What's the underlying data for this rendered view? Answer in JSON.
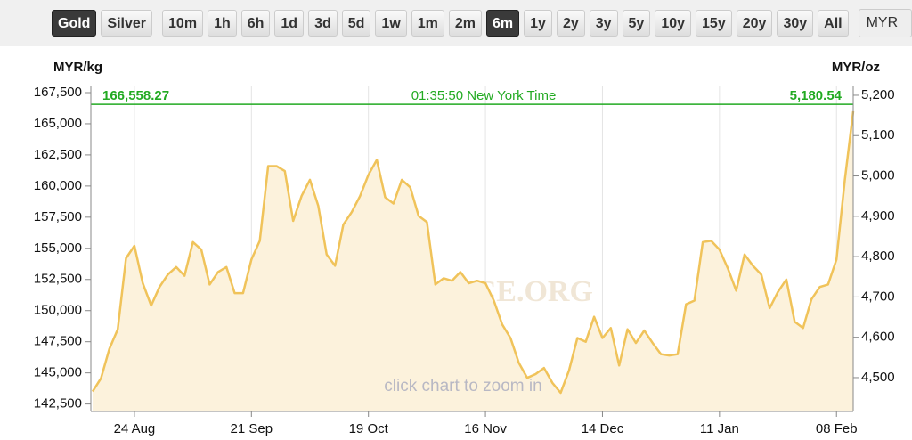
{
  "toolbar": {
    "buttons": [
      {
        "label": "Gold",
        "active": true
      },
      {
        "label": "Silver",
        "active": false
      },
      {
        "label": "10m",
        "active": false
      },
      {
        "label": "1h",
        "active": false
      },
      {
        "label": "6h",
        "active": false
      },
      {
        "label": "1d",
        "active": false
      },
      {
        "label": "3d",
        "active": false
      },
      {
        "label": "5d",
        "active": false
      },
      {
        "label": "1w",
        "active": false
      },
      {
        "label": "1m",
        "active": false
      },
      {
        "label": "2m",
        "active": false
      },
      {
        "label": "6m",
        "active": true
      },
      {
        "label": "1y",
        "active": false
      },
      {
        "label": "2y",
        "active": false
      },
      {
        "label": "3y",
        "active": false
      },
      {
        "label": "5y",
        "active": false
      },
      {
        "label": "10y",
        "active": false
      },
      {
        "label": "15y",
        "active": false
      },
      {
        "label": "20y",
        "active": false
      },
      {
        "label": "30y",
        "active": false
      },
      {
        "label": "All",
        "active": false
      }
    ],
    "currency": "MYR"
  },
  "chart_data": {
    "type": "line",
    "y_label": "MYR/kg",
    "y2_label": "MYR/oz",
    "watermark": "GOLDPRICE.ORG",
    "hint": "click chart to zoom in",
    "price_line": {
      "value": 166558.27,
      "label": "166,558.27",
      "label_oz": "5,180.54",
      "time": "01:35:50 New York Time",
      "color": "#22aa22"
    },
    "categories": [
      null,
      null,
      null,
      null,
      null,
      "24 Aug",
      null,
      null,
      null,
      null,
      null,
      null,
      null,
      null,
      null,
      null,
      null,
      null,
      null,
      "21 Sep",
      null,
      null,
      null,
      null,
      null,
      null,
      null,
      null,
      null,
      null,
      null,
      null,
      null,
      "19 Oct",
      null,
      null,
      null,
      null,
      null,
      null,
      null,
      null,
      null,
      null,
      null,
      null,
      null,
      "16 Nov",
      null,
      null,
      null,
      null,
      null,
      null,
      null,
      null,
      null,
      null,
      null,
      null,
      null,
      "14 Dec",
      null,
      null,
      null,
      null,
      null,
      null,
      null,
      null,
      null,
      null,
      null,
      null,
      null,
      "11 Jan",
      null,
      null,
      null,
      null,
      null,
      null,
      null,
      null,
      null,
      null,
      null,
      null,
      null,
      "08 Feb",
      null,
      null
    ],
    "series": [
      {
        "name": "Gold",
        "color": "#f0c35a",
        "fill": "#fcf2dc",
        "values": [
          143500,
          144570,
          146930,
          148500,
          154200,
          155200,
          152200,
          150400,
          151900,
          152900,
          153500,
          152800,
          155500,
          154900,
          152100,
          153100,
          153500,
          151400,
          151400,
          154100,
          155600,
          161600,
          161600,
          161200,
          157200,
          159200,
          160500,
          158400,
          154500,
          153600,
          156900,
          157900,
          159200,
          160900,
          162100,
          159100,
          158600,
          160500,
          159900,
          157600,
          157100,
          152100,
          152600,
          152400,
          153100,
          152200,
          152400,
          152200,
          150800,
          148900,
          147800,
          145800,
          144600,
          144900,
          145400,
          144200,
          143400,
          145200,
          147800,
          147500,
          149500,
          147800,
          148600,
          145600,
          148500,
          147400,
          148400,
          147400,
          146500,
          146400,
          146500,
          150500,
          150800,
          155500,
          155600,
          154900,
          153400,
          151600,
          154500,
          153600,
          152900,
          150200,
          151500,
          152500,
          149100,
          148600,
          150900,
          151900,
          152100,
          154100,
          160500,
          166000
        ]
      }
    ],
    "ylim": [
      141900,
      168000
    ],
    "yticks": [
      {
        "value": 142500,
        "label": "142,500"
      },
      {
        "value": 145000,
        "label": "145,000"
      },
      {
        "value": 147500,
        "label": "147,500"
      },
      {
        "value": 150000,
        "label": "150,000"
      },
      {
        "value": 152500,
        "label": "152,500"
      },
      {
        "value": 155000,
        "label": "155,000"
      },
      {
        "value": 157500,
        "label": "157,500"
      },
      {
        "value": 160000,
        "label": "160,000"
      },
      {
        "value": 162500,
        "label": "162,500"
      },
      {
        "value": 165000,
        "label": "165,000"
      },
      {
        "value": 167500,
        "label": "167,500"
      }
    ],
    "y2lim": [
      4416,
      5222
    ],
    "y2ticks": [
      {
        "value": 4500,
        "label": "4,500"
      },
      {
        "value": 4600,
        "label": "4,600"
      },
      {
        "value": 4700,
        "label": "4,700"
      },
      {
        "value": 4800,
        "label": "4,800"
      },
      {
        "value": 4900,
        "label": "4,900"
      },
      {
        "value": 5000,
        "label": "5,000"
      },
      {
        "value": 5100,
        "label": "5,100"
      },
      {
        "value": 5200,
        "label": "5,200"
      }
    ],
    "xgrid": true
  }
}
